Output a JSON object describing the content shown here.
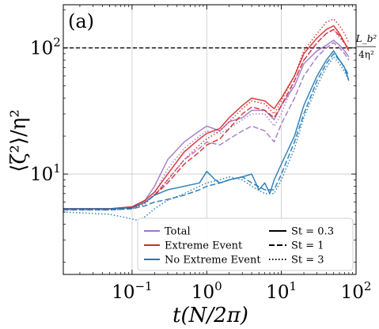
{
  "chart_data": {
    "type": "line",
    "panel_label": "(a)",
    "xlabel": "t(N/2π)",
    "ylabel": "⟨ζ²⟩/η²",
    "xscale": "log",
    "yscale": "log",
    "xlim": [
      0.012,
      100
    ],
    "ylim": [
      1.6,
      220
    ],
    "grid": true,
    "x_ticks": [
      {
        "value": 0.1,
        "base": "10",
        "exp": "−1"
      },
      {
        "value": 1,
        "base": "10",
        "exp": "0"
      },
      {
        "value": 10,
        "base": "10",
        "exp": "1"
      },
      {
        "value": 100,
        "base": "10",
        "exp": "2"
      }
    ],
    "y_ticks": [
      {
        "value": 10,
        "base": "10",
        "exp": "1"
      },
      {
        "value": 100,
        "base": "10",
        "exp": "2"
      }
    ],
    "reference_line": {
      "y": 100,
      "style": "dashed",
      "color": "#000000",
      "label_num": "L_b²",
      "label_den": "4η²"
    },
    "colors": {
      "Total": "#a173c4",
      "Extreme Event": "#d62728",
      "No Extreme Event": "#1f77b4"
    },
    "legend": {
      "placement": "lower-right",
      "color_entries": [
        "Total",
        "Extreme Event",
        "No Extreme Event"
      ],
      "style_entries": [
        {
          "label": "St  =  0.3",
          "dash": "solid"
        },
        {
          "label": "St  =  1",
          "dash": "dashed"
        },
        {
          "label": "St  =  3",
          "dash": "dotted"
        }
      ]
    },
    "series": [
      {
        "group": "Total",
        "st": "0.3",
        "dash": "solid",
        "x": [
          0.012,
          0.05,
          0.1,
          0.15,
          0.2,
          0.3,
          0.5,
          0.8,
          1,
          1.5,
          2,
          3,
          4,
          6,
          8,
          10,
          15,
          20,
          30,
          40,
          50,
          60,
          70,
          80
        ],
        "y": [
          5.3,
          5.3,
          5.5,
          6.2,
          8,
          13,
          18,
          22,
          24,
          22,
          26,
          28,
          32,
          32,
          27,
          35,
          50,
          75,
          95,
          105,
          115,
          105,
          95,
          85
        ]
      },
      {
        "group": "Total",
        "st": "1",
        "dash": "dashed",
        "x": [
          0.012,
          0.05,
          0.1,
          0.15,
          0.2,
          0.3,
          0.5,
          0.8,
          1,
          1.5,
          2,
          3,
          4,
          6,
          8,
          10,
          15,
          20,
          30,
          40,
          50,
          60,
          70,
          80
        ],
        "y": [
          5.3,
          5.3,
          5.4,
          6,
          6.8,
          9,
          13,
          16,
          18,
          17,
          19,
          22,
          24,
          22,
          18,
          25,
          40,
          60,
          85,
          100,
          110,
          100,
          90,
          80
        ]
      },
      {
        "group": "Total",
        "st": "3",
        "dash": "dotted",
        "x": [
          0.012,
          0.05,
          0.1,
          0.15,
          0.2,
          0.3,
          0.5,
          0.8,
          1,
          1.5,
          2,
          3,
          4,
          6,
          8,
          10,
          15,
          20,
          30,
          40,
          50,
          60,
          70,
          80
        ],
        "y": [
          5.2,
          5.2,
          5.3,
          5.8,
          7,
          11,
          16,
          20,
          22,
          21,
          23,
          27,
          30,
          30,
          24,
          30,
          55,
          80,
          110,
          130,
          140,
          120,
          110,
          100
        ]
      },
      {
        "group": "Extreme Event",
        "st": "0.3",
        "dash": "solid",
        "x": [
          0.012,
          0.05,
          0.1,
          0.15,
          0.2,
          0.3,
          0.5,
          0.8,
          1,
          1.5,
          2,
          3,
          4,
          6,
          8,
          10,
          15,
          20,
          30,
          40,
          50,
          60,
          70,
          80
        ],
        "y": [
          5.3,
          5.3,
          5.5,
          6.2,
          7.2,
          10,
          15,
          19,
          21,
          23,
          28,
          35,
          40,
          38,
          33,
          40,
          60,
          90,
          120,
          140,
          150,
          130,
          110,
          95
        ]
      },
      {
        "group": "Extreme Event",
        "st": "1",
        "dash": "dashed",
        "x": [
          0.012,
          0.05,
          0.1,
          0.15,
          0.2,
          0.3,
          0.5,
          0.8,
          1,
          1.5,
          2,
          3,
          4,
          6,
          8,
          10,
          15,
          20,
          30,
          40,
          50,
          60,
          70,
          80
        ],
        "y": [
          5.3,
          5.3,
          5.4,
          6,
          6.8,
          8.5,
          12,
          15,
          17,
          19,
          23,
          30,
          34,
          32,
          28,
          35,
          55,
          80,
          110,
          130,
          140,
          125,
          110,
          95
        ]
      },
      {
        "group": "Extreme Event",
        "st": "3",
        "dash": "dotted",
        "x": [
          0.012,
          0.05,
          0.1,
          0.15,
          0.2,
          0.3,
          0.5,
          0.8,
          1,
          1.5,
          2,
          3,
          4,
          6,
          8,
          10,
          15,
          20,
          30,
          40,
          50,
          60,
          70,
          80
        ],
        "y": [
          5.2,
          5.2,
          5.3,
          5.9,
          6.8,
          9,
          13,
          17,
          19,
          22,
          26,
          33,
          38,
          36,
          30,
          38,
          60,
          95,
          130,
          160,
          170,
          150,
          130,
          110
        ]
      },
      {
        "group": "No Extreme Event",
        "st": "0.3",
        "dash": "solid",
        "x": [
          0.012,
          0.05,
          0.1,
          0.15,
          0.2,
          0.3,
          0.5,
          0.8,
          1,
          1.3,
          1.5,
          2,
          3,
          4,
          5,
          6,
          7,
          8,
          10,
          15,
          20,
          30,
          40,
          50,
          60,
          70,
          80
        ],
        "y": [
          5.3,
          5.3,
          5.4,
          6,
          6.8,
          7.5,
          8,
          8.5,
          10.5,
          9,
          8.5,
          9,
          9.5,
          10,
          7.5,
          8.5,
          7,
          9,
          12,
          20,
          35,
          60,
          80,
          95,
          80,
          70,
          55
        ]
      },
      {
        "group": "No Extreme Event",
        "st": "1",
        "dash": "dashed",
        "x": [
          0.012,
          0.05,
          0.1,
          0.15,
          0.2,
          0.3,
          0.5,
          0.8,
          1,
          1.5,
          2,
          3,
          4,
          6,
          8,
          10,
          15,
          20,
          30,
          40,
          50,
          60,
          70,
          80
        ],
        "y": [
          5.2,
          5.2,
          5.3,
          5.6,
          6,
          6.3,
          6.8,
          7.5,
          8,
          8.5,
          9,
          9.5,
          8.5,
          7.5,
          7.5,
          10,
          18,
          30,
          55,
          75,
          90,
          80,
          70,
          60
        ]
      },
      {
        "group": "No Extreme Event",
        "st": "3",
        "dash": "dotted",
        "x": [
          0.012,
          0.05,
          0.1,
          0.12,
          0.15,
          0.2,
          0.3,
          0.5,
          0.8,
          1,
          1.5,
          2,
          3,
          4,
          6,
          8,
          10,
          15,
          20,
          30,
          40,
          50,
          60,
          70,
          80
        ],
        "y": [
          5,
          4.8,
          4.4,
          4.3,
          4.6,
          5.3,
          6.2,
          7,
          8,
          8.5,
          9,
          9.5,
          9,
          8,
          7,
          7,
          9,
          16,
          28,
          50,
          70,
          85,
          75,
          65,
          55
        ]
      }
    ]
  }
}
